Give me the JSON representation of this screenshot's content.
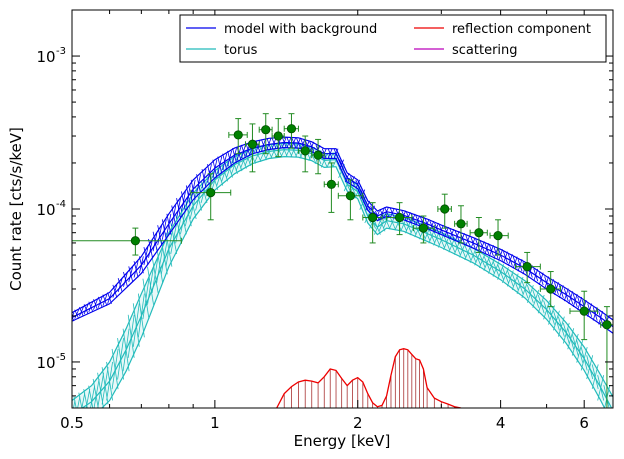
{
  "chart_data": {
    "type": "line",
    "xlabel": "Energy [keV]",
    "ylabel": "Count rate [cts/s/keV]",
    "xscale": "log",
    "yscale": "log",
    "xlim": [
      0.5,
      6.9
    ],
    "ylim": [
      5e-06,
      0.002
    ],
    "xticks": [
      {
        "value": 0.5,
        "label": "0.5"
      },
      {
        "value": 1,
        "label": "1"
      },
      {
        "value": 2,
        "label": "2"
      },
      {
        "value": 4,
        "label": "4"
      },
      {
        "value": 6,
        "label": "6"
      }
    ],
    "yticks": [
      {
        "value": 1e-05,
        "base": "10",
        "exp": "-5"
      },
      {
        "value": 0.0001,
        "base": "10",
        "exp": "-4"
      },
      {
        "value": 0.001,
        "base": "10",
        "exp": "-3"
      }
    ],
    "legend": {
      "position": "top-right",
      "columns": 2,
      "entries": [
        {
          "label": "model with background",
          "color": "#0000ee"
        },
        {
          "label": "reflection component",
          "color": "#ee0000"
        },
        {
          "label": "torus",
          "color": "#22bbbb"
        },
        {
          "label": "scattering",
          "color": "#bb00bb"
        }
      ]
    },
    "model": {
      "color": "#0000ee",
      "x": [
        0.5,
        0.6,
        0.7,
        0.8,
        0.9,
        1.0,
        1.1,
        1.2,
        1.3,
        1.4,
        1.5,
        1.6,
        1.7,
        1.8,
        1.9,
        2.0,
        2.1,
        2.2,
        2.3,
        2.5,
        2.8,
        3.0,
        3.5,
        4.0,
        4.5,
        5.0,
        5.5,
        6.0,
        6.5,
        6.9
      ],
      "mid": [
        1.95e-05,
        2.6e-05,
        4.3e-05,
        8e-05,
        0.000135,
        0.000185,
        0.000225,
        0.00025,
        0.000265,
        0.000272,
        0.00027,
        0.000255,
        0.00023,
        0.00023,
        0.00016,
        0.000145,
        0.000105,
        9e-05,
        9.6e-05,
        9.1e-05,
        8e-05,
        7.3e-05,
        6e-05,
        5e-05,
        4.1e-05,
        3.3e-05,
        2.75e-05,
        2.3e-05,
        1.95e-05,
        1.7e-05
      ],
      "lo": [
        1.85e-05,
        2.4e-05,
        3.8e-05,
        6.8e-05,
        0.000115,
        0.00016,
        0.0002,
        0.00023,
        0.000245,
        0.000252,
        0.00025,
        0.000237,
        0.000214,
        0.000214,
        0.00015,
        0.000136,
        9.8e-05,
        8.4e-05,
        8.95e-05,
        8.5e-05,
        7.45e-05,
        6.8e-05,
        5.55e-05,
        4.6e-05,
        3.75e-05,
        3e-05,
        2.5e-05,
        2.08e-05,
        1.76e-05,
        1.54e-05
      ],
      "hi": [
        2.1e-05,
        2.85e-05,
        4.9e-05,
        9.3e-05,
        0.000155,
        0.00021,
        0.00025,
        0.000275,
        0.00029,
        0.000295,
        0.000292,
        0.000275,
        0.000248,
        0.000248,
        0.000172,
        0.000155,
        0.000113,
        9.7e-05,
        0.000103,
        9.75e-05,
        8.6e-05,
        7.85e-05,
        6.5e-05,
        5.45e-05,
        4.5e-05,
        3.62e-05,
        3.02e-05,
        2.54e-05,
        2.15e-05,
        1.88e-05
      ]
    },
    "torus": {
      "color": "#22bbbb",
      "x": [
        0.5,
        0.55,
        0.6,
        0.65,
        0.7,
        0.8,
        0.9,
        1.0,
        1.1,
        1.2,
        1.3,
        1.4,
        1.5,
        1.6,
        1.7,
        1.8,
        1.9,
        2.0,
        2.1,
        2.2,
        2.3,
        2.5,
        2.8,
        3.0,
        3.5,
        4.0,
        4.5,
        5.0,
        5.5,
        6.0,
        6.5,
        6.9
      ],
      "mid": [
        4.5e-06,
        5.5e-06,
        7.5e-06,
        1.2e-05,
        2e-05,
        5.5e-05,
        0.000105,
        0.000155,
        0.000195,
        0.000222,
        0.000238,
        0.000244,
        0.000242,
        0.00023,
        0.000208,
        0.00021,
        0.000145,
        0.00013,
        9e-05,
        7.6e-05,
        8.4e-05,
        8e-05,
        6.9e-05,
        6.3e-05,
        5e-05,
        3.9e-05,
        3e-05,
        2.2e-05,
        1.55e-05,
        1.05e-05,
        6.8e-06,
        4.8e-06
      ],
      "lo": [
        3.6e-06,
        4.3e-06,
        5.6e-06,
        8.7e-06,
        1.45e-05,
        4.2e-05,
        8.6e-05,
        0.000133,
        0.00017,
        0.000198,
        0.000214,
        0.00022,
        0.000218,
        0.000207,
        0.000187,
        0.000189,
        0.000131,
        0.000117,
        8.1e-05,
        6.8e-05,
        7.5e-05,
        7.15e-05,
        6.15e-05,
        5.6e-05,
        4.45e-05,
        3.45e-05,
        2.62e-05,
        1.9e-05,
        1.32e-05,
        8.8e-06,
        5.6e-06,
        3.9e-06
      ],
      "hi": [
        5.6e-06,
        7e-06,
        1e-05,
        1.65e-05,
        2.8e-05,
        7e-05,
        0.000127,
        0.000178,
        0.00022,
        0.000247,
        0.000263,
        0.000269,
        0.000267,
        0.000254,
        0.00023,
        0.000232,
        0.00016,
        0.000143,
        9.9e-05,
        8.4e-05,
        9.3e-05,
        8.85e-05,
        7.65e-05,
        7e-05,
        5.55e-05,
        4.35e-05,
        3.4e-05,
        2.52e-05,
        1.8e-05,
        1.25e-05,
        8.2e-06,
        5.9e-06
      ]
    },
    "reflection": {
      "color": "#ee0000",
      "x": [
        1.35,
        1.4,
        1.45,
        1.5,
        1.55,
        1.6,
        1.65,
        1.7,
        1.75,
        1.8,
        1.85,
        1.9,
        1.95,
        2.0,
        2.05,
        2.1,
        2.15,
        2.2,
        2.25,
        2.3,
        2.35,
        2.4,
        2.45,
        2.5,
        2.55,
        2.6,
        2.65,
        2.7,
        2.75,
        2.8,
        2.9,
        3.0,
        3.1,
        3.2,
        3.3
      ],
      "y": [
        5e-06,
        6.2e-06,
        6.9e-06,
        7.4e-06,
        7.6e-06,
        7.5e-06,
        7.3e-06,
        8e-06,
        9e-06,
        8.8e-06,
        7.8e-06,
        7e-06,
        7.6e-06,
        7.9e-06,
        7.4e-06,
        6.2e-06,
        5.4e-06,
        5.1e-06,
        5.2e-06,
        6e-06,
        8.2e-06,
        1.08e-05,
        1.2e-05,
        1.22e-05,
        1.2e-05,
        1.12e-05,
        1.05e-05,
        1.03e-05,
        9e-06,
        6.8e-06,
        5.8e-06,
        5.5e-06,
        5.3e-06,
        5.1e-06,
        5e-06
      ]
    },
    "data_points": {
      "color": "#228b22",
      "points": [
        {
          "x": 0.68,
          "y": 6.2e-05,
          "xlo": 0.5,
          "xhi": 0.85,
          "ylo": 5e-05,
          "yhi": 7.5e-05
        },
        {
          "x": 0.98,
          "y": 0.000128,
          "xlo": 0.89,
          "xhi": 1.08,
          "ylo": 8.5e-05,
          "yhi": 0.00017
        },
        {
          "x": 1.12,
          "y": 0.000305,
          "xlo": 1.07,
          "xhi": 1.17,
          "ylo": 0.00023,
          "yhi": 0.00039
        },
        {
          "x": 1.2,
          "y": 0.000265,
          "xlo": 1.16,
          "xhi": 1.24,
          "ylo": 0.000175,
          "yhi": 0.00036
        },
        {
          "x": 1.28,
          "y": 0.00033,
          "xlo": 1.24,
          "xhi": 1.32,
          "ylo": 0.00023,
          "yhi": 0.00042
        },
        {
          "x": 1.36,
          "y": 0.0003,
          "xlo": 1.32,
          "xhi": 1.4,
          "ylo": 0.00022,
          "yhi": 0.00039
        },
        {
          "x": 1.45,
          "y": 0.000335,
          "xlo": 1.4,
          "xhi": 1.5,
          "ylo": 0.00025,
          "yhi": 0.00042
        },
        {
          "x": 1.55,
          "y": 0.00024,
          "xlo": 1.5,
          "xhi": 1.6,
          "ylo": 0.000175,
          "yhi": 0.0003
        },
        {
          "x": 1.65,
          "y": 0.000225,
          "xlo": 1.6,
          "xhi": 1.7,
          "ylo": 0.00017,
          "yhi": 0.000285
        },
        {
          "x": 1.76,
          "y": 0.000145,
          "xlo": 1.7,
          "xhi": 1.82,
          "ylo": 9.5e-05,
          "yhi": 0.0002
        },
        {
          "x": 1.93,
          "y": 0.000122,
          "xlo": 1.82,
          "xhi": 2.05,
          "ylo": 8.5e-05,
          "yhi": 0.000155
        },
        {
          "x": 2.15,
          "y": 8.8e-05,
          "xlo": 2.05,
          "xhi": 2.25,
          "ylo": 6e-05,
          "yhi": 0.00011
        },
        {
          "x": 2.45,
          "y": 8.8e-05,
          "xlo": 2.3,
          "xhi": 2.6,
          "ylo": 6.8e-05,
          "yhi": 0.00011
        },
        {
          "x": 2.75,
          "y": 7.5e-05,
          "xlo": 2.62,
          "xhi": 2.9,
          "ylo": 6e-05,
          "yhi": 9e-05
        },
        {
          "x": 3.05,
          "y": 0.0001,
          "xlo": 2.95,
          "xhi": 3.15,
          "ylo": 7.5e-05,
          "yhi": 0.000125
        },
        {
          "x": 3.3,
          "y": 8e-05,
          "xlo": 3.2,
          "xhi": 3.4,
          "ylo": 6e-05,
          "yhi": 0.000105
        },
        {
          "x": 3.6,
          "y": 7e-05,
          "xlo": 3.45,
          "xhi": 3.75,
          "ylo": 5.2e-05,
          "yhi": 8.8e-05
        },
        {
          "x": 3.95,
          "y": 6.7e-05,
          "xlo": 3.8,
          "xhi": 4.15,
          "ylo": 5e-05,
          "yhi": 8.5e-05
        },
        {
          "x": 4.55,
          "y": 4.2e-05,
          "xlo": 4.3,
          "xhi": 4.85,
          "ylo": 3.3e-05,
          "yhi": 5.2e-05
        },
        {
          "x": 5.1,
          "y": 3e-05,
          "xlo": 4.85,
          "xhi": 5.35,
          "ylo": 2.3e-05,
          "yhi": 3.9e-05
        },
        {
          "x": 6.0,
          "y": 2.15e-05,
          "xlo": 5.6,
          "xhi": 6.4,
          "ylo": 1.4e-05,
          "yhi": 2.9e-05
        },
        {
          "x": 6.7,
          "y": 1.75e-05,
          "xlo": 6.5,
          "xhi": 6.9,
          "ylo": 5e-06,
          "yhi": 2.3e-05
        }
      ]
    }
  }
}
